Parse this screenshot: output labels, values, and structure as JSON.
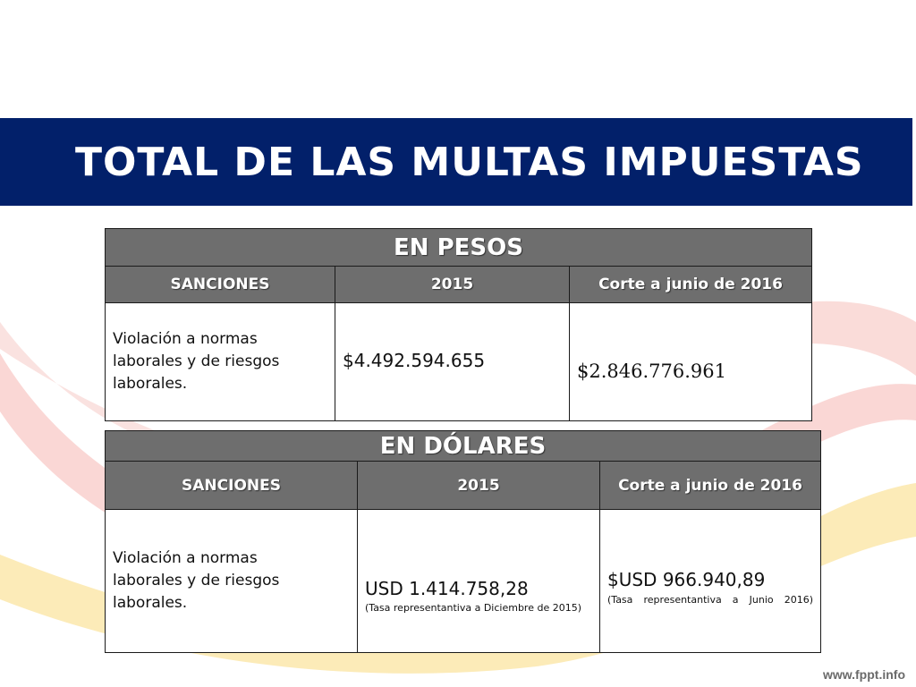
{
  "slide": {
    "title": "TOTAL DE LAS MULTAS IMPUESTAS",
    "footer": "www.fppt.info",
    "colors": {
      "title_bar": "#02206a",
      "header_fill": "#6e6e6e",
      "swoosh_red": "#f7c9c6",
      "swoosh_yellow": "#fbe6a3"
    }
  },
  "pesos": {
    "heading": "EN PESOS",
    "columns": [
      "SANCIONES",
      "2015",
      "Corte a junio de 2016"
    ],
    "row": {
      "sancion": "Violación a normas laborales y de riesgos laborales.",
      "v2015": "$4.492.594.655",
      "v2016": "$2.846.776.961"
    }
  },
  "dolares": {
    "heading": "EN DÓLARES",
    "columns": [
      "SANCIONES",
      "2015",
      "Corte a junio de 2016"
    ],
    "row": {
      "sancion": "Violación a normas laborales y de riesgos laborales.",
      "v2015": "USD 1.414.758,28",
      "v2015_note": "(Tasa representantiva a Diciembre de 2015)",
      "v2016": "$USD 966.940,89",
      "v2016_note": "(Tasa representantiva a Junio 2016)"
    }
  }
}
